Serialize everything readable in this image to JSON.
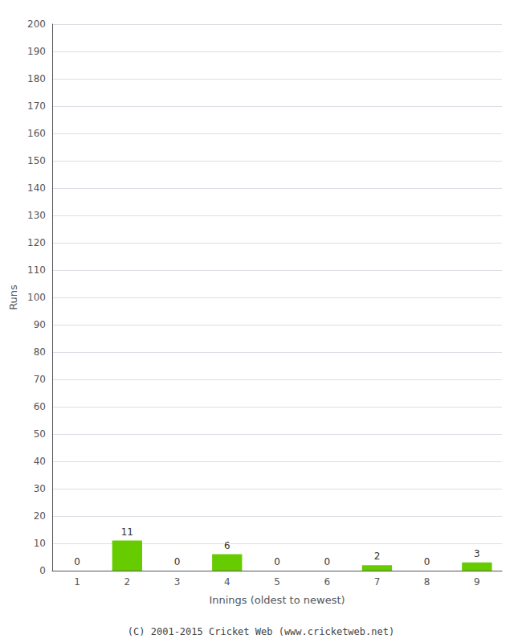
{
  "chart_data": {
    "type": "bar",
    "xlabel": "Innings (oldest to newest)",
    "ylabel": "Runs",
    "categories": [
      "1",
      "2",
      "3",
      "4",
      "5",
      "6",
      "7",
      "8",
      "9"
    ],
    "values": [
      0,
      11,
      0,
      6,
      0,
      0,
      2,
      0,
      3
    ],
    "color": "#66cc00",
    "ylim": [
      0,
      200
    ],
    "yticks": [
      0,
      10,
      20,
      30,
      40,
      50,
      60,
      70,
      80,
      90,
      100,
      110,
      120,
      130,
      140,
      150,
      160,
      170,
      180,
      190,
      200
    ],
    "grid": true,
    "data_labels": true,
    "annotations": [
      "(C) 2001-2015 Cricket Web (www.cricketweb.net)"
    ]
  }
}
